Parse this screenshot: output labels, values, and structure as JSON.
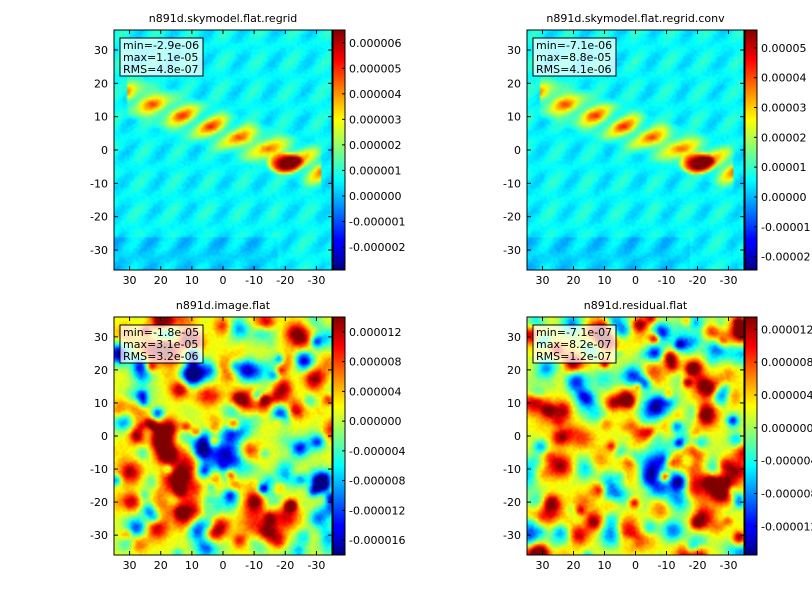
{
  "chart_data": [
    {
      "type": "heatmap",
      "title": "n891d.skymodel.flat.regrid",
      "stats": [
        "min=-2.9e-06",
        "max=1.1e-05",
        "RMS=4.8e-07"
      ],
      "xticks": [
        "30",
        "20",
        "10",
        "0",
        "-10",
        "-20",
        "-30"
      ],
      "xtick_values": [
        30,
        20,
        10,
        0,
        -10,
        -20,
        -30
      ],
      "yticks": [
        "30",
        "20",
        "10",
        "0",
        "-10",
        "-20",
        "-30"
      ],
      "ytick_values": [
        30,
        20,
        10,
        0,
        -10,
        -20,
        -30
      ],
      "xlim": [
        35,
        -35
      ],
      "ylim": [
        -36,
        36
      ],
      "colorbar_ticks": [
        "0.000006",
        "0.000005",
        "0.000004",
        "0.000003",
        "0.000002",
        "0.000001",
        "0.000000",
        "-0.000001",
        "-0.000002"
      ],
      "colorbar_values": [
        6e-06,
        5e-06,
        4e-06,
        3e-06,
        2e-06,
        1e-06,
        0,
        -1e-06,
        -2e-06
      ],
      "colorbar_range": [
        -2.9e-06,
        6.5e-06
      ],
      "colormap": "jet",
      "pattern": "smooth-sky"
    },
    {
      "type": "heatmap",
      "title": "n891d.skymodel.flat.regrid.conv",
      "stats": [
        "min=-7.1e-06",
        "max=8.8e-05",
        "RMS=4.1e-06"
      ],
      "xticks": [
        "30",
        "20",
        "10",
        "0",
        "-10",
        "-20",
        "-30"
      ],
      "xtick_values": [
        30,
        20,
        10,
        0,
        -10,
        -20,
        -30
      ],
      "yticks": [
        "30",
        "20",
        "10",
        "0",
        "-10",
        "-20",
        "-30"
      ],
      "ytick_values": [
        30,
        20,
        10,
        0,
        -10,
        -20,
        -30
      ],
      "xlim": [
        35,
        -35
      ],
      "ylim": [
        -36,
        36
      ],
      "colorbar_ticks": [
        "0.00005",
        "0.00004",
        "0.00003",
        "0.00002",
        "0.00001",
        "0.00000",
        "-0.00001",
        "-0.00002"
      ],
      "colorbar_values": [
        5e-05,
        4e-05,
        3e-05,
        2e-05,
        1e-05,
        0,
        -1e-05,
        -2e-05
      ],
      "colorbar_range": [
        -2.45e-05,
        5.6e-05
      ],
      "colormap": "jet",
      "pattern": "smooth-sky"
    },
    {
      "type": "heatmap",
      "title": "n891d.image.flat",
      "stats": [
        "min=-1.8e-05",
        "max=3.1e-05",
        "RMS=3.2e-06"
      ],
      "xticks": [
        "30",
        "20",
        "10",
        "0",
        "-10",
        "-20",
        "-30"
      ],
      "xtick_values": [
        30,
        20,
        10,
        0,
        -10,
        -20,
        -30
      ],
      "yticks": [
        "30",
        "20",
        "10",
        "0",
        "-10",
        "-20",
        "-30"
      ],
      "ytick_values": [
        30,
        20,
        10,
        0,
        -10,
        -20,
        -30
      ],
      "xlim": [
        35,
        -35
      ],
      "ylim": [
        -36,
        36
      ],
      "colorbar_ticks": [
        "0.000012",
        "0.000008",
        "0.000004",
        "0.000000",
        "-0.000004",
        "-0.000008",
        "-0.000012",
        "-0.000016"
      ],
      "colorbar_values": [
        1.2e-05,
        8e-06,
        4e-06,
        0,
        -4e-06,
        -8e-06,
        -1.2e-05,
        -1.6e-05
      ],
      "colorbar_range": [
        -1.8e-05,
        1.4e-05
      ],
      "colormap": "jet",
      "pattern": "noise"
    },
    {
      "type": "heatmap",
      "title": "n891d.residual.flat",
      "stats": [
        "min=-7.1e-07",
        "max=8.2e-07",
        "RMS=1.2e-07"
      ],
      "xticks": [
        "30",
        "20",
        "10",
        "0",
        "-10",
        "-20",
        "-30"
      ],
      "xtick_values": [
        30,
        20,
        10,
        0,
        -10,
        -20,
        -30
      ],
      "yticks": [
        "30",
        "20",
        "10",
        "0",
        "-10",
        "-20",
        "-30"
      ],
      "ytick_values": [
        30,
        20,
        10,
        0,
        -10,
        -20,
        -30
      ],
      "xlim": [
        35,
        -35
      ],
      "ylim": [
        -36,
        36
      ],
      "colorbar_ticks": [
        "0.000012",
        "0.000008",
        "0.000004",
        "0.000000",
        "-0.000004",
        "-0.000008",
        "-0.000012"
      ],
      "colorbar_values": [
        1.2e-05,
        8e-06,
        4e-06,
        0,
        -4e-06,
        -8e-06,
        -1.2e-05
      ],
      "colorbar_range": [
        -1.55e-05,
        1.35e-05
      ],
      "colormap": "jet",
      "pattern": "noise"
    }
  ]
}
